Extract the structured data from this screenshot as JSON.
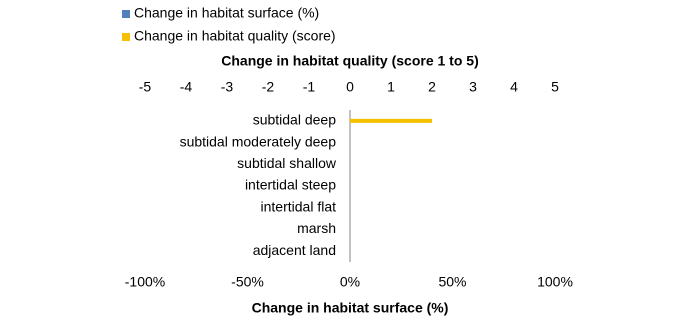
{
  "chart_data": {
    "type": "bar",
    "orientation": "horizontal",
    "categories": [
      "subtidal deep",
      "subtidal moderately deep",
      "subtidal shallow",
      "intertidal steep",
      "intertidal flat",
      "marsh",
      "adjacent land"
    ],
    "series": [
      {
        "name": "Change in habitat surface (%)",
        "color": "#4f81bd",
        "values": [
          0,
          0,
          0,
          0,
          0,
          0,
          0
        ]
      },
      {
        "name": "Change in habitat quality (score)",
        "color": "#f5c000",
        "axis": "x2",
        "values": [
          2,
          0,
          0,
          0,
          0,
          0,
          0
        ]
      }
    ],
    "xlabel": "Change in habitat surface (%)",
    "x2label": "Change in habitat quality (score 1 to 5)",
    "xlim": [
      -100,
      100
    ],
    "xticks": [
      {
        "value": -100,
        "label": "-100%"
      },
      {
        "value": -50,
        "label": "-50%"
      },
      {
        "value": 0,
        "label": "0%"
      },
      {
        "value": 50,
        "label": "50%"
      },
      {
        "value": 100,
        "label": "100%"
      }
    ],
    "x2lim": [
      -5,
      5
    ],
    "x2ticks": [
      -5,
      -4,
      -3,
      -2,
      -1,
      0,
      1,
      2,
      3,
      4,
      5
    ],
    "legend": "top-left"
  }
}
